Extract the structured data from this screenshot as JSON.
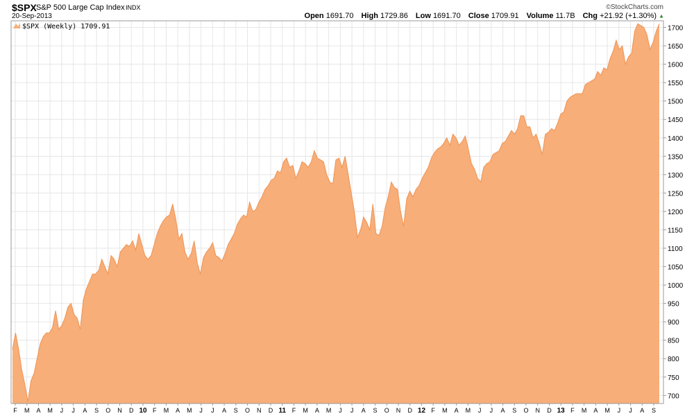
{
  "header": {
    "symbol": "$SPX",
    "name": "S&P 500 Large Cap Index",
    "exchange": "INDX",
    "date": "20-Sep-2013",
    "brand": "StockCharts.com",
    "open_label": "Open",
    "open": "1691.70",
    "high_label": "High",
    "high": "1729.86",
    "low_label": "Low",
    "low": "1691.70",
    "close_label": "Close",
    "close": "1709.91",
    "volume_label": "Volume",
    "volume": "11.7B",
    "chg_label": "Chg",
    "chg": "+21.92 (+1.30%)"
  },
  "colors": {
    "area_fill": "#f7ae78",
    "area_line": "#ef9355",
    "grid": "#e6e6e6",
    "axis": "#9a9a9a"
  },
  "chart_data": {
    "type": "area",
    "legend": "$SPX (Weekly) 1709.91",
    "ylim": [
      678,
      1718
    ],
    "yticks": [
      700,
      750,
      800,
      850,
      900,
      950,
      1000,
      1050,
      1100,
      1150,
      1200,
      1250,
      1300,
      1350,
      1400,
      1450,
      1500,
      1550,
      1600,
      1650,
      1700
    ],
    "grid": true,
    "x_tick_labels": [
      "F",
      "M",
      "A",
      "M",
      "J",
      "J",
      "A",
      "S",
      "O",
      "N",
      "D",
      "10",
      "F",
      "M",
      "A",
      "M",
      "J",
      "J",
      "A",
      "S",
      "O",
      "N",
      "D",
      "11",
      "F",
      "M",
      "A",
      "M",
      "J",
      "J",
      "A",
      "S",
      "O",
      "N",
      "D",
      "12",
      "F",
      "M",
      "A",
      "M",
      "J",
      "J",
      "A",
      "S",
      "O",
      "N",
      "D",
      "13",
      "F",
      "M",
      "A",
      "M",
      "J",
      "J",
      "A",
      "S"
    ],
    "values": [
      825,
      870,
      825,
      770,
      730,
      683,
      740,
      760,
      800,
      840,
      860,
      870,
      870,
      885,
      930,
      880,
      890,
      910,
      940,
      950,
      920,
      910,
      880,
      960,
      990,
      1010,
      1030,
      1030,
      1040,
      1070,
      1050,
      1030,
      1080,
      1070,
      1050,
      1090,
      1100,
      1110,
      1105,
      1120,
      1095,
      1140,
      1110,
      1080,
      1070,
      1080,
      1110,
      1140,
      1160,
      1175,
      1185,
      1190,
      1220,
      1180,
      1125,
      1140,
      1090,
      1070,
      1085,
      1120,
      1060,
      1030,
      1075,
      1090,
      1100,
      1115,
      1080,
      1075,
      1065,
      1085,
      1110,
      1125,
      1140,
      1165,
      1180,
      1190,
      1185,
      1225,
      1200,
      1205,
      1225,
      1240,
      1260,
      1270,
      1285,
      1290,
      1310,
      1305,
      1335,
      1345,
      1320,
      1325,
      1290,
      1310,
      1335,
      1330,
      1320,
      1335,
      1365,
      1345,
      1340,
      1335,
      1300,
      1280,
      1275,
      1340,
      1345,
      1320,
      1350,
      1300,
      1250,
      1200,
      1130,
      1150,
      1185,
      1170,
      1150,
      1220,
      1140,
      1135,
      1160,
      1210,
      1240,
      1280,
      1265,
      1260,
      1200,
      1160,
      1235,
      1255,
      1240,
      1260,
      1270,
      1290,
      1305,
      1320,
      1345,
      1360,
      1370,
      1375,
      1385,
      1400,
      1380,
      1410,
      1400,
      1380,
      1390,
      1405,
      1370,
      1330,
      1315,
      1290,
      1280,
      1320,
      1330,
      1335,
      1355,
      1360,
      1365,
      1385,
      1390,
      1405,
      1420,
      1410,
      1425,
      1460,
      1460,
      1430,
      1430,
      1400,
      1410,
      1385,
      1355,
      1410,
      1415,
      1425,
      1420,
      1440,
      1465,
      1470,
      1500,
      1510,
      1515,
      1520,
      1520,
      1520,
      1545,
      1550,
      1555,
      1560,
      1580,
      1570,
      1590,
      1585,
      1615,
      1635,
      1665,
      1640,
      1650,
      1600,
      1620,
      1630,
      1690,
      1710,
      1705,
      1700,
      1680,
      1640,
      1660,
      1690,
      1709.91
    ]
  }
}
